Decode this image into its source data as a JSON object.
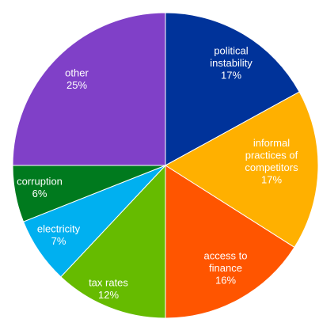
{
  "chart_data": {
    "type": "pie",
    "title": "",
    "slices": [
      {
        "label": "political instability",
        "label_lines": [
          "political",
          "instability"
        ],
        "pct_label": "17%",
        "value": 17,
        "color": "#00339A"
      },
      {
        "label": "informal practices of competitors",
        "label_lines": [
          "informal",
          "practices of",
          "competitors"
        ],
        "pct_label": "17%",
        "value": 17,
        "color": "#FFB000"
      },
      {
        "label": "access to finance",
        "label_lines": [
          "access to",
          "finance"
        ],
        "pct_label": "16%",
        "value": 16,
        "color": "#FF5500"
      },
      {
        "label": "tax rates",
        "label_lines": [
          "tax rates"
        ],
        "pct_label": "12%",
        "value": 12,
        "color": "#66BB00"
      },
      {
        "label": "electricity",
        "label_lines": [
          "electricity"
        ],
        "pct_label": "7%",
        "value": 7,
        "color": "#00B0F0"
      },
      {
        "label": "corruption",
        "label_lines": [
          "corruption"
        ],
        "pct_label": "6%",
        "value": 6,
        "color": "#007A1E"
      },
      {
        "label": "other",
        "label_lines": [
          "other"
        ],
        "pct_label": "25%",
        "value": 25,
        "color": "#8040C8"
      }
    ]
  }
}
